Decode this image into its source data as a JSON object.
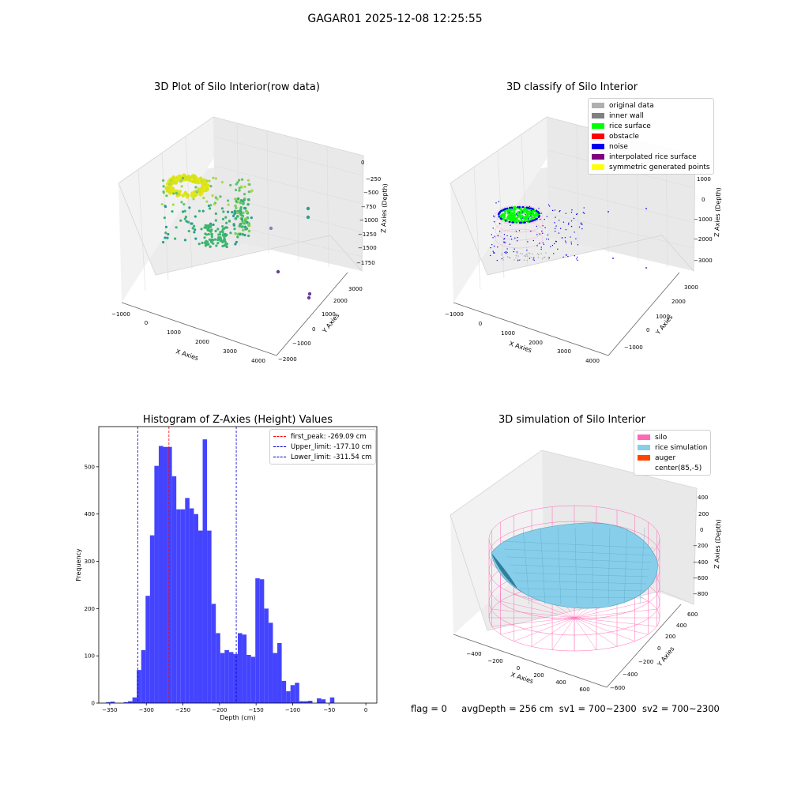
{
  "figure": {
    "suptitle": "GAGAR01 2025-12-08 12:25:55",
    "status": {
      "flag": "flag = 0",
      "avg_depth": "avgDepth = 256 cm",
      "sv1": "sv1 = 700~2300",
      "sv2": "sv2 = 700~2300"
    }
  },
  "chart_data": [
    {
      "type": "scatter",
      "title": "3D Plot of Silo Interior(row data)",
      "xlabel": "X Axies",
      "ylabel": "Y Axies",
      "zlabel": "Z Axies (Depth)",
      "x_ticks": [
        "−1000",
        "0",
        "1000",
        "2000",
        "3000",
        "4000"
      ],
      "y_ticks": [
        "−2000",
        "−1000",
        "0",
        "1000",
        "2000",
        "3000"
      ],
      "z_ticks": [
        "0",
        "−250",
        "−500",
        "−750",
        "−1000",
        "−1250",
        "−1500",
        "−1750"
      ],
      "colors": {
        "yellow": "#d8e21a",
        "green": "#3cb46e",
        "teal": "#2a9d8f",
        "purple": "#6a3d9a"
      },
      "outliers": [
        {
          "x": 3600,
          "y": -1500,
          "z": -1900
        },
        {
          "x": 4000,
          "y": -600,
          "z": -1850
        },
        {
          "x": 4000,
          "y": 700,
          "z": -950
        }
      ]
    },
    {
      "type": "scatter",
      "title": "3D classify of Silo Interior",
      "xlabel": "X Axies",
      "ylabel": "Y Axies",
      "zlabel": "Z Axies (Depth)",
      "x_ticks": [
        "−1000",
        "0",
        "1000",
        "2000",
        "3000",
        "4000"
      ],
      "y_ticks": [
        "−1000",
        "0",
        "1000",
        "2000",
        "3000"
      ],
      "z_ticks": [
        "1000",
        "0",
        "−1000",
        "−2000",
        "−3000"
      ],
      "legend": [
        {
          "label": "original data",
          "color": "#b0b0b0"
        },
        {
          "label": "inner wall",
          "color": "#808080"
        },
        {
          "label": "rice surface",
          "color": "#00ff00"
        },
        {
          "label": "obstacle",
          "color": "#ff0000"
        },
        {
          "label": "noise",
          "color": "#0000ee"
        },
        {
          "label": "interpolated rice surface",
          "color": "#800080"
        },
        {
          "label": "symmetric generated points",
          "color": "#ffff00"
        }
      ]
    },
    {
      "type": "bar",
      "title": "Histogram of Z-Axies (Height) Values",
      "xlabel": "Depth (cm)",
      "ylabel": "Frequency",
      "bar_color": "#4444ff",
      "xlim": [
        -365,
        15
      ],
      "ylim": [
        0,
        585
      ],
      "x_ticks": [
        -350,
        -300,
        -250,
        -200,
        -150,
        -100,
        -50,
        0
      ],
      "x_tick_labels": [
        "−350",
        "−300",
        "−250",
        "−200",
        "−150",
        "−100",
        "−50",
        "0"
      ],
      "y_ticks": [
        0,
        100,
        200,
        300,
        400,
        500
      ],
      "y_tick_labels": [
        "0",
        "100",
        "200",
        "300",
        "400",
        "500"
      ],
      "bin_start": -355,
      "bin_width": 6,
      "values": [
        2,
        3,
        0,
        0,
        2,
        4,
        12,
        70,
        112,
        227,
        355,
        502,
        544,
        542,
        542,
        480,
        410,
        410,
        434,
        412,
        400,
        365,
        558,
        365,
        210,
        148,
        106,
        112,
        108,
        104,
        148,
        145,
        102,
        98,
        264,
        262,
        200,
        170,
        106,
        127,
        47,
        25,
        38,
        43,
        4,
        4,
        5,
        0,
        10,
        8,
        0,
        12,
        0
      ],
      "lines": [
        {
          "label": "first_peak: -269.09 cm",
          "x": -269.09,
          "color": "#ff0000"
        },
        {
          "label": "Upper_limit: -177.10 cm",
          "x": -177.1,
          "color": "#0000cc"
        },
        {
          "label": "Lower_limit: -311.54 cm",
          "x": -311.54,
          "color": "#0000cc"
        }
      ]
    },
    {
      "type": "area",
      "title": "3D simulation of Silo Interior",
      "xlabel": "X Axies",
      "ylabel": "Y Axies",
      "zlabel": "Z Axies (Depth)",
      "x_ticks": [
        "−400",
        "−200",
        "0",
        "200",
        "400",
        "600"
      ],
      "y_ticks": [
        "−600",
        "−400",
        "−200",
        "0",
        "200",
        "400",
        "600"
      ],
      "z_ticks": [
        "400",
        "200",
        "0",
        "−200",
        "−400",
        "−600",
        "−800"
      ],
      "legend": [
        {
          "label": "silo",
          "color": "#ff69b4"
        },
        {
          "label": "rice simulation",
          "color": "#87ceeb"
        },
        {
          "label": "auger",
          "color": "#ff4500"
        },
        {
          "label": "center(85,-5)",
          "color": ""
        }
      ]
    }
  ]
}
